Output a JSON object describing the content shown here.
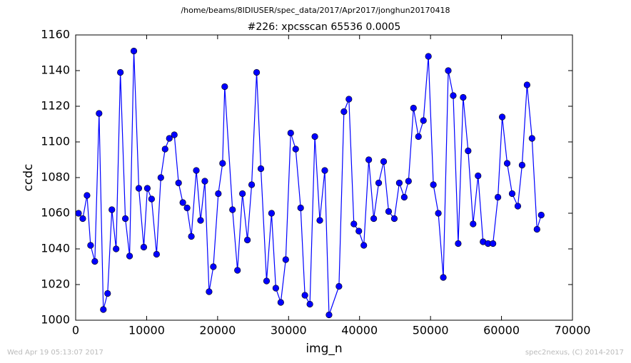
{
  "chart_data": {
    "type": "line",
    "suptitle": "/home/beams/8IDIUSER/spec_data/2017/Apr2017/jonghun20170418",
    "title": "#226: xpcsscan 65536 0.0005",
    "xlabel": "img_n",
    "ylabel": "ccdc",
    "footer_left": "Wed Apr 19 05:13:07 2017",
    "footer_right": "spec2nexus, (C) 2014-2017",
    "color": "#0000ff",
    "x": [
      400,
      1000,
      1600,
      2100,
      2700,
      3300,
      3900,
      4500,
      5100,
      5700,
      6300,
      7000,
      7600,
      8200,
      8900,
      9600,
      10100,
      10700,
      11400,
      12000,
      12600,
      13200,
      13900,
      14500,
      15100,
      15700,
      16300,
      17000,
      17600,
      18200,
      18800,
      19400,
      20100,
      20700,
      21000,
      22100,
      22800,
      23500,
      24200,
      24800,
      25500,
      26100,
      26900,
      27600,
      28200,
      28900,
      29600,
      30300,
      31000,
      31700,
      32300,
      33000,
      33700,
      34400,
      35100,
      35700,
      37100,
      37800,
      38500,
      39200,
      39900,
      40600,
      41300,
      42000,
      42700,
      43400,
      44100,
      44900,
      45600,
      46300,
      46900,
      47600,
      48300,
      49000,
      49700,
      50400,
      51100,
      51800,
      52500,
      53200,
      53900,
      54600,
      55300,
      56000,
      56700,
      57400,
      58100,
      58800,
      59500,
      60100,
      60800,
      61500,
      62300,
      62900,
      63600,
      64300,
      65000,
      65600
    ],
    "values": [
      1060,
      1057,
      1070,
      1042,
      1033,
      1116,
      1006,
      1015,
      1062,
      1040,
      1139,
      1057,
      1036,
      1151,
      1074,
      1041,
      1074,
      1068,
      1037,
      1080,
      1096,
      1102,
      1104,
      1077,
      1066,
      1063,
      1047,
      1084,
      1056,
      1078,
      1016,
      1030,
      1071,
      1088,
      1131,
      1062,
      1028,
      1071,
      1045,
      1076,
      1139,
      1085,
      1022,
      1060,
      1018,
      1010,
      1034,
      1105,
      1096,
      1063,
      1014,
      1009,
      1103,
      1056,
      1084,
      1003,
      1019,
      1117,
      1124,
      1054,
      1050,
      1042,
      1090,
      1057,
      1077,
      1089,
      1061,
      1057,
      1077,
      1069,
      1078,
      1119,
      1103,
      1112,
      1148,
      1076,
      1060,
      1024,
      1140,
      1126,
      1043,
      1125,
      1095,
      1054,
      1081,
      1044,
      1043,
      1043,
      1069,
      1114,
      1088,
      1071,
      1064,
      1087,
      1132,
      1102,
      1051,
      1059
    ],
    "xlim": [
      0,
      70000
    ],
    "xticks": [
      0,
      10000,
      20000,
      30000,
      40000,
      50000,
      60000,
      70000
    ],
    "ylim": [
      1000,
      1160
    ],
    "yticks": [
      1000,
      1020,
      1040,
      1060,
      1080,
      1100,
      1120,
      1140,
      1160
    ],
    "grid": false
  }
}
